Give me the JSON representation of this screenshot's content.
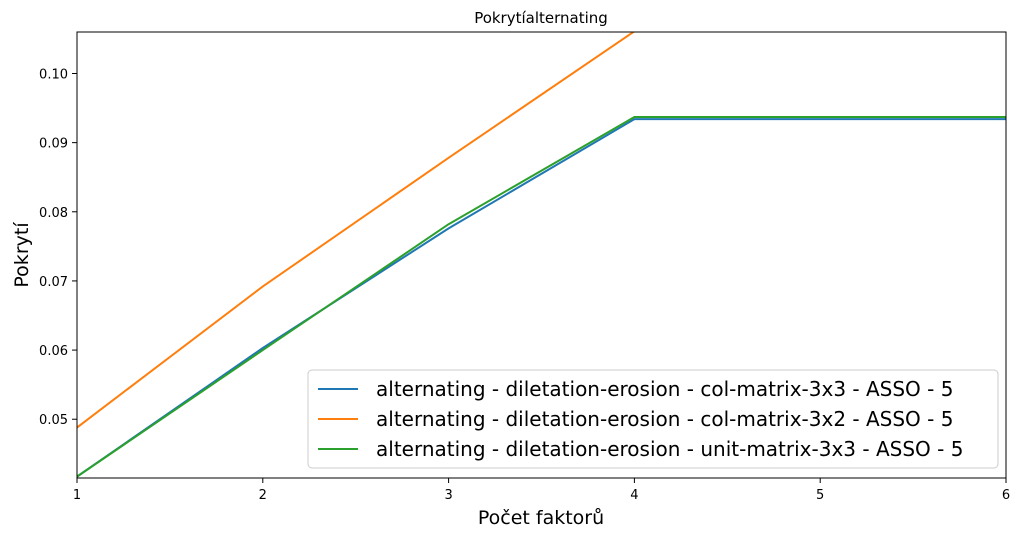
{
  "chart_data": {
    "type": "line",
    "title": "Pokrytíalternating",
    "xlabel": "Počet faktorů",
    "ylabel": "Pokrytí",
    "x": [
      1,
      2,
      3,
      4,
      5,
      6
    ],
    "xlim": [
      1,
      6
    ],
    "ylim": [
      0.0415,
      0.106
    ],
    "xticks": [
      "1",
      "2",
      "3",
      "4",
      "5",
      "6"
    ],
    "yticks": [
      "0.05",
      "0.06",
      "0.07",
      "0.08",
      "0.09",
      "0.10"
    ],
    "ytick_values": [
      0.05,
      0.06,
      0.07,
      0.08,
      0.09,
      0.1
    ],
    "grid": false,
    "legend_position": "lower-right",
    "series": [
      {
        "name": "alternating - diletation-erosion - col-matrix-3x3 - ASSO - 5",
        "color": "#1f77b4",
        "values": [
          0.0417,
          0.0603,
          0.0776,
          0.0934,
          0.0934,
          0.0934
        ]
      },
      {
        "name": "alternating - diletation-erosion - col-matrix-3x2 - ASSO - 5",
        "color": "#ff7f0e",
        "values": [
          0.0488,
          0.0692,
          0.0878,
          0.1061,
          0.1061,
          0.1061
        ]
      },
      {
        "name": "alternating - diletation-erosion - unit-matrix-3x3 - ASSO - 5",
        "color": "#2ca02c",
        "values": [
          0.0417,
          0.06,
          0.0782,
          0.0937,
          0.0937,
          0.0937
        ]
      }
    ]
  }
}
